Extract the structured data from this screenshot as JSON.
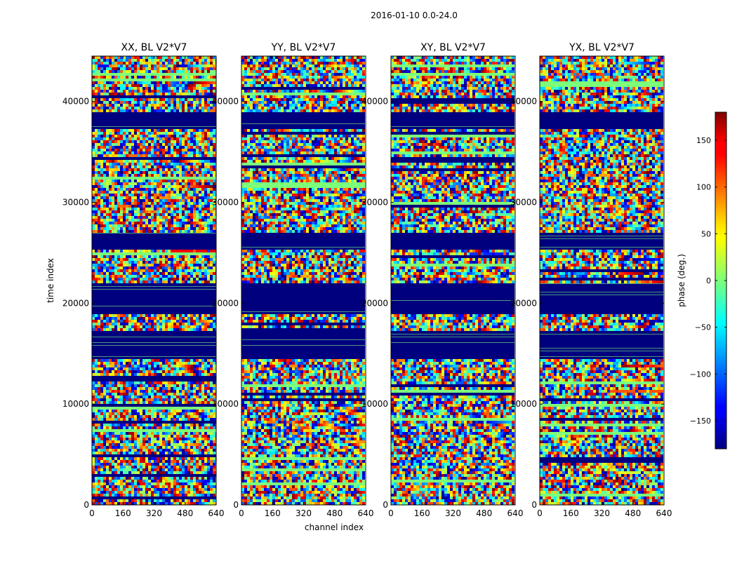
{
  "figure_title": "2016-01-10 0.0-24.0",
  "chart_data": {
    "type": "heatmap",
    "title": "2016-01-10 0.0-24.0",
    "xlabel": "channel index",
    "ylabel": "time index",
    "xlim": [
      0,
      640
    ],
    "ylim": [
      0,
      44500
    ],
    "x_ticks": [
      0,
      160,
      320,
      480,
      640
    ],
    "y_ticks": [
      0,
      10000,
      20000,
      30000,
      40000
    ],
    "panels": [
      {
        "title": "XX, BL V2*V7",
        "polarization": "XX",
        "baseline": "V2*V7"
      },
      {
        "title": "YY, BL V2*V7",
        "polarization": "YY",
        "baseline": "V2*V7"
      },
      {
        "title": "XY, BL V2*V7",
        "polarization": "XY",
        "baseline": "V2*V7"
      },
      {
        "title": "YX, BL V2*V7",
        "polarization": "YX",
        "baseline": "V2*V7"
      }
    ],
    "colorbar": {
      "label": "phase (deg.)",
      "range": [
        -180,
        180
      ],
      "ticks": [
        -150,
        -100,
        -50,
        0,
        50,
        100,
        150
      ],
      "colormap": "jet"
    },
    "flagged_time_ranges": [
      [
        37300,
        39000
      ],
      [
        25500,
        27200
      ],
      [
        14500,
        17500
      ],
      [
        19000,
        22000
      ]
    ]
  },
  "colors": {
    "flagged": "#00007f",
    "background": "#ffffff",
    "axis": "#000000"
  }
}
